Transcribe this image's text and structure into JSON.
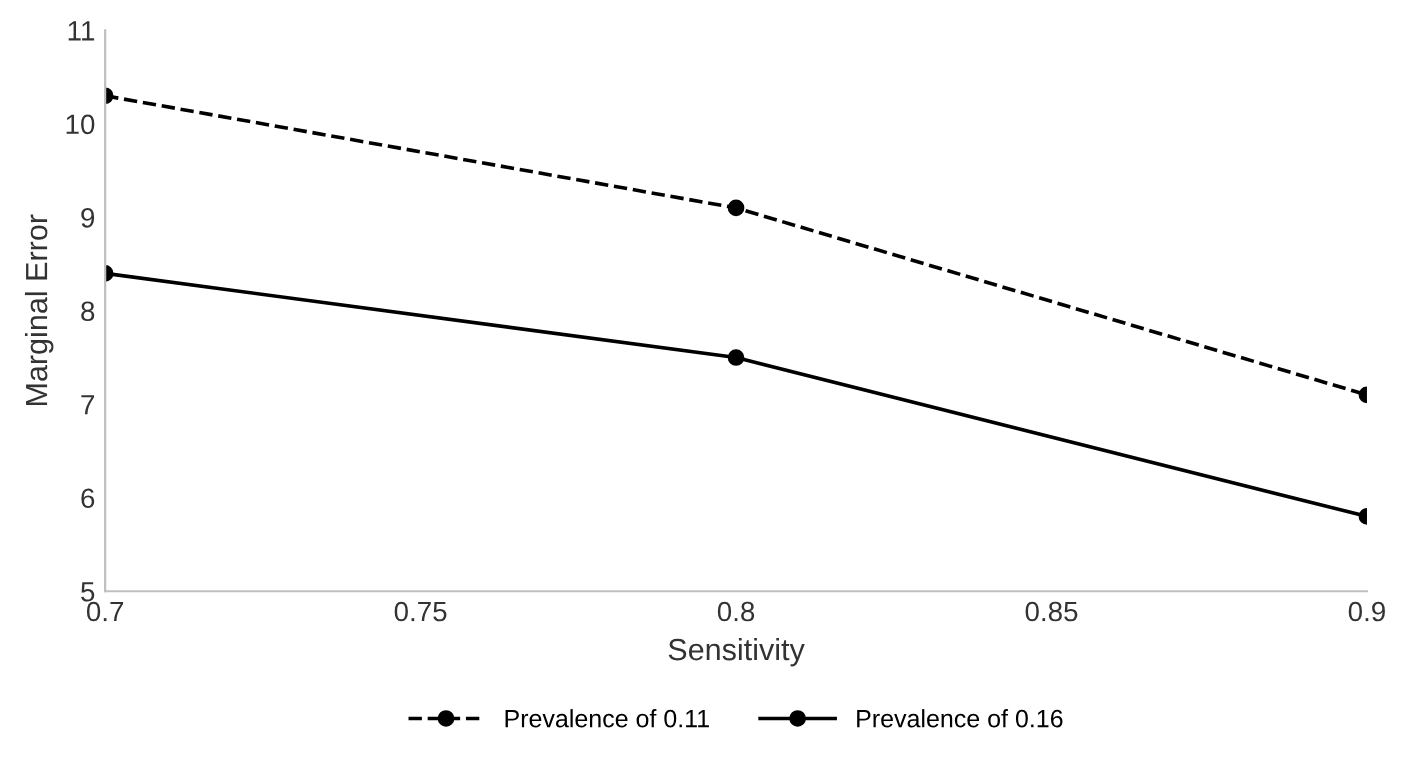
{
  "chart_data": {
    "type": "line",
    "xlabel": "Sensitivity",
    "ylabel": "Marginal Error",
    "x": [
      0.7,
      0.8,
      0.9
    ],
    "series": [
      {
        "name": "Prevalence of 0.11",
        "color": "#000000",
        "values": [
          10.3,
          9.1,
          7.1
        ],
        "line_style": "dashed"
      },
      {
        "name": "Prevalence of 0.16",
        "color": "#000000",
        "values": [
          8.4,
          7.5,
          5.8
        ],
        "line_style": "solid"
      }
    ],
    "xlim": [
      0.7,
      0.9
    ],
    "xticks": [
      0.7,
      0.75,
      0.8,
      0.85,
      0.9
    ],
    "ylim": [
      5,
      11
    ],
    "yticks": [
      5,
      6,
      7,
      8,
      9,
      10,
      11
    ],
    "grid": false,
    "legend": "bottom",
    "marker": "circle"
  }
}
